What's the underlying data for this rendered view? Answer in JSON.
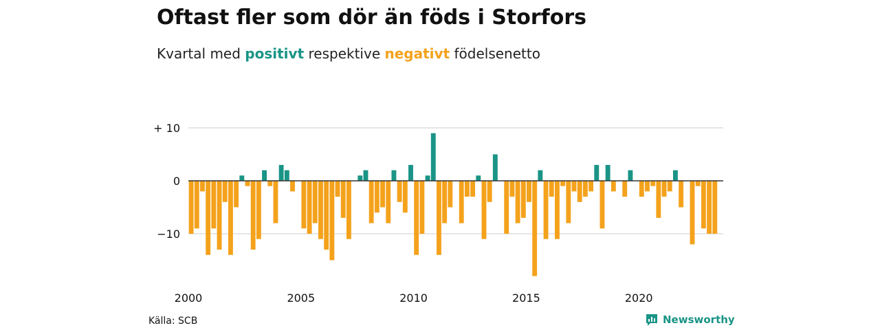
{
  "header": {
    "title": "Oftast fler som dör än föds i Storfors",
    "subtitle_pre": "Kvartal med",
    "subtitle_pos": "positivt",
    "subtitle_mid": "respektive",
    "subtitle_neg": "negativt",
    "subtitle_post": "födelsenetto"
  },
  "footer": {
    "source": "Källa: SCB",
    "brand": "Newsworthy",
    "brand_icon": "newsworthy-logo-icon"
  },
  "colors": {
    "positive": "#1a9486",
    "negative": "#f4a21c",
    "grid": "#dddddd",
    "zero": "#333333",
    "brand": "#1a9486"
  },
  "chart_data": {
    "type": "bar",
    "title": "Oftast fler som dör än föds i Storfors",
    "subtitle": "Kvartal med positivt respektive negativt födelsenetto",
    "x_start_year": 2000,
    "periods_per_year": 4,
    "x_ticks": [
      "2000",
      "2005",
      "2010",
      "2015",
      "2020"
    ],
    "y_ticks": [
      {
        "value": 10,
        "label": "+ 10"
      },
      {
        "value": 0,
        "label": "0"
      },
      {
        "value": -10,
        "label": "−10"
      }
    ],
    "ylim": [
      -18,
      10
    ],
    "grid": true,
    "series": [
      {
        "values": [
          -10,
          -9,
          -2,
          -14,
          -9,
          -13,
          -4,
          -14,
          -5,
          1,
          -1,
          -13,
          -11,
          2,
          -1,
          -8,
          3,
          2,
          -2,
          0,
          -9,
          -10,
          -8,
          -11,
          -13,
          -15,
          -3,
          -7,
          -11,
          0,
          1,
          2,
          -8,
          -6,
          -5,
          -8,
          2,
          -4,
          -6,
          3,
          -14,
          -10,
          1,
          9,
          -14,
          -8,
          -5,
          0,
          -8,
          -3,
          -3,
          1,
          -11,
          -4,
          5,
          0,
          -10,
          -3,
          -8,
          -7,
          -4,
          -18,
          2,
          -11,
          -3,
          -11,
          -1,
          -8,
          -2,
          -4,
          -3,
          -2,
          3,
          -9,
          3,
          -2,
          0,
          -3,
          2,
          0,
          -3,
          -2,
          -1,
          -7,
          -3,
          -2,
          2,
          -5,
          0,
          -12,
          -1,
          -9,
          -10,
          -10
        ]
      }
    ]
  }
}
